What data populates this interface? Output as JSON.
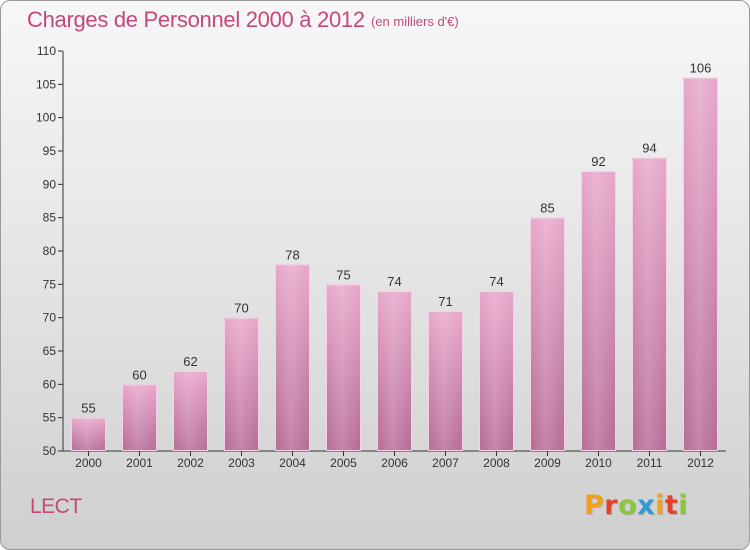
{
  "header": {
    "title": "Charges de Personnel 2000 à 2012",
    "subtitle": "(en milliers d'€)"
  },
  "footer": {
    "commune": "LECT",
    "logo": "Proxiti"
  },
  "colors": {
    "title": "#c5487a",
    "bar_top": "#e8a6ca",
    "bar_bottom": "#b56a95",
    "logo_letters": [
      "#f3a11b",
      "#e5422b",
      "#8cc63e",
      "#2e9ad6",
      "#f3a11b",
      "#e5422b",
      "#8cc63e"
    ]
  },
  "chart_data": {
    "type": "bar",
    "title": "Charges de Personnel 2000 à 2012",
    "subtitle": "(en milliers d'€)",
    "xlabel": "",
    "ylabel": "",
    "categories": [
      "2000",
      "2001",
      "2002",
      "2003",
      "2004",
      "2005",
      "2006",
      "2007",
      "2008",
      "2009",
      "2010",
      "2011",
      "2012"
    ],
    "values": [
      55,
      60,
      62,
      70,
      78,
      75,
      74,
      71,
      74,
      85,
      92,
      94,
      106
    ],
    "ylim": [
      50,
      110
    ],
    "yticks": [
      50,
      55,
      60,
      65,
      70,
      75,
      80,
      85,
      90,
      95,
      100,
      105,
      110
    ],
    "grid": false,
    "data_labels": true
  }
}
